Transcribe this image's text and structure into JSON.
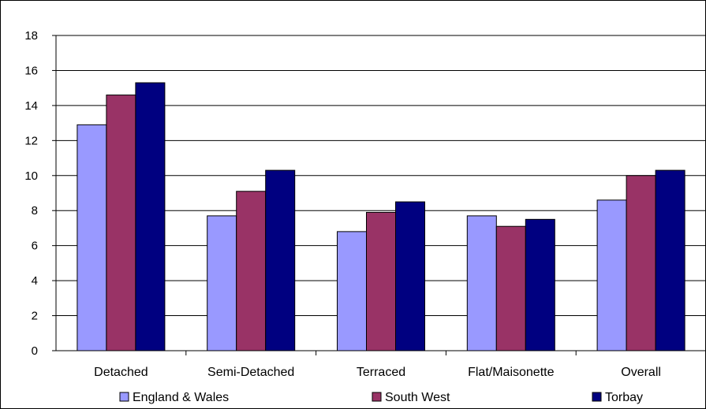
{
  "chart_data": {
    "type": "bar",
    "title": "",
    "xlabel": "",
    "ylabel": "",
    "ylim": [
      0,
      18
    ],
    "yticks": [
      0,
      2,
      4,
      6,
      8,
      10,
      12,
      14,
      16,
      18
    ],
    "grid": true,
    "legend_position": "bottom",
    "categories": [
      "Detached",
      "Semi-Detached",
      "Terraced",
      "Flat/Maisonette",
      "Overall"
    ],
    "series": [
      {
        "name": "England & Wales",
        "color": "#9999ff",
        "values": [
          12.9,
          7.7,
          6.8,
          7.7,
          8.6
        ]
      },
      {
        "name": "South West",
        "color": "#993366",
        "values": [
          14.6,
          9.1,
          7.9,
          7.1,
          10.0
        ]
      },
      {
        "name": "Torbay",
        "color": "#000080",
        "values": [
          15.3,
          10.3,
          8.5,
          7.5,
          10.3
        ]
      }
    ]
  }
}
